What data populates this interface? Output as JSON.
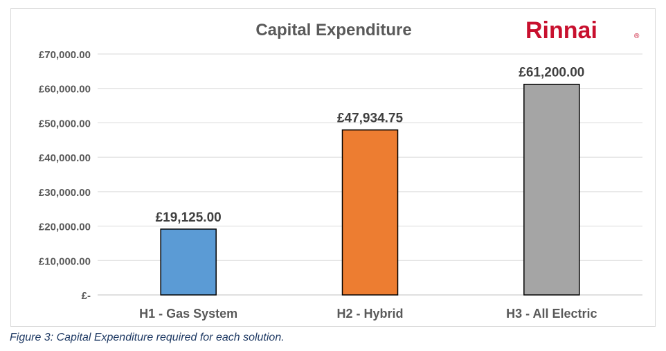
{
  "chart_data": {
    "type": "bar",
    "title": "Capital Expenditure",
    "categories": [
      "H1 - Gas System",
      "H2 - Hybrid",
      "H3 - All Electric"
    ],
    "values": [
      19125.0,
      47934.75,
      61200.0
    ],
    "data_labels": [
      "£19,125.00",
      "£47,934.75",
      "£61,200.00"
    ],
    "bar_colors": [
      "#5b9bd5",
      "#ed7d31",
      "#a5a5a5"
    ],
    "ylim": [
      0,
      70000
    ],
    "yticks": [
      0,
      10000,
      20000,
      30000,
      40000,
      50000,
      60000,
      70000
    ],
    "ytick_labels": [
      "£-",
      "£10,000.00",
      "£20,000.00",
      "£30,000.00",
      "£40,000.00",
      "£50,000.00",
      "£60,000.00",
      "£70,000.00"
    ],
    "xlabel": "",
    "ylabel": "",
    "grid": true,
    "legend": "none"
  },
  "logo": {
    "text": "Rinnai",
    "mark": "®",
    "color": "#c8102e"
  },
  "caption": "Figure 3: Capital Expenditure required for each solution."
}
